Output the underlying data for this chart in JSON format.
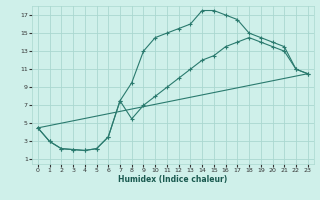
{
  "xlabel": "Humidex (Indice chaleur)",
  "bg_color": "#cff0ea",
  "grid_color": "#aad8d0",
  "line_color": "#2a7a6e",
  "xlim": [
    -0.5,
    23.5
  ],
  "ylim": [
    0.5,
    18
  ],
  "xticks": [
    0,
    1,
    2,
    3,
    4,
    5,
    6,
    7,
    8,
    9,
    10,
    11,
    12,
    13,
    14,
    15,
    16,
    17,
    18,
    19,
    20,
    21,
    22,
    23
  ],
  "yticks": [
    1,
    3,
    5,
    7,
    9,
    11,
    13,
    15,
    17
  ],
  "curve1_x": [
    0,
    1,
    2,
    3,
    4,
    5,
    6,
    7,
    8,
    9,
    10,
    11,
    12,
    13,
    14,
    15,
    16,
    17,
    18,
    19,
    20,
    21,
    22,
    23
  ],
  "curve1_y": [
    4.5,
    3.0,
    2.2,
    2.1,
    2.0,
    2.2,
    3.5,
    7.5,
    9.5,
    13.0,
    14.5,
    15.0,
    15.5,
    16.0,
    17.5,
    17.5,
    17.0,
    16.5,
    15.0,
    14.5,
    14.0,
    13.5,
    11.0,
    10.5
  ],
  "curve2_x": [
    0,
    1,
    2,
    3,
    4,
    5,
    6,
    7,
    8,
    9,
    10,
    11,
    12,
    13,
    14,
    15,
    16,
    17,
    18,
    19,
    20,
    21,
    22,
    23
  ],
  "curve2_y": [
    4.5,
    3.0,
    2.2,
    2.1,
    2.0,
    2.2,
    3.5,
    7.5,
    5.5,
    7.0,
    8.0,
    9.0,
    10.0,
    11.0,
    12.0,
    12.5,
    13.5,
    14.0,
    14.5,
    14.0,
    13.5,
    13.0,
    11.0,
    10.5
  ],
  "curve3_x": [
    0,
    23
  ],
  "curve3_y": [
    4.5,
    10.5
  ]
}
